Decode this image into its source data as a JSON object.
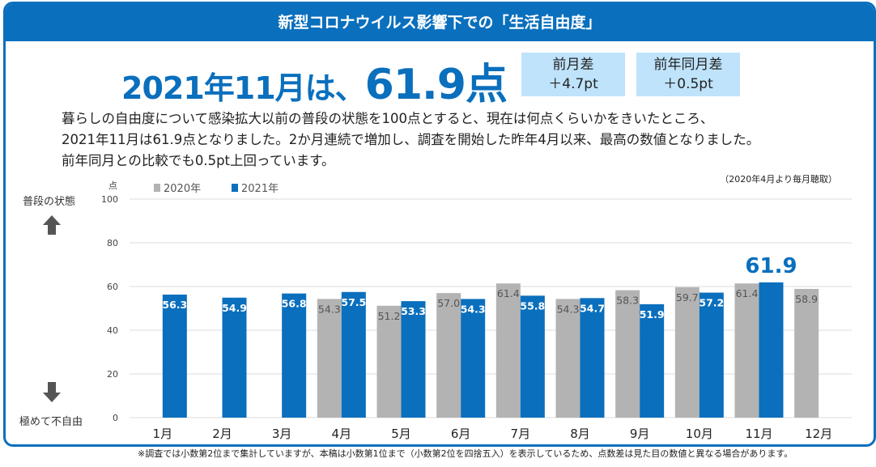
{
  "banner": "新型コロナウイルス影響下での「生活自由度」",
  "headline": {
    "prefix": "2021年11月は、",
    "value": "61.9点"
  },
  "diff_prev_month": {
    "label": "前月差",
    "value": "＋4.7pt"
  },
  "diff_prev_year": {
    "label": "前年同月差",
    "value": "＋0.5pt"
  },
  "description": [
    "暮らしの自由度について感染拡大以前の普段の状態を100点とすると、現在は何点くらいかをきいたところ、",
    "2021年11月は61.9点となりました。2か月連続で増加し、調査を開始した昨年4月以来、最高の数値となりました。",
    "前年同月との比較でも0.5pt上回っています。"
  ],
  "note_right": "（2020年4月より毎月聴取）",
  "side_top": "普段の状態",
  "side_bottom": "極めて不自由",
  "footnote": "※調査では小数第2位まで集計していますが、本稿は小数第1位まで（小数第2位を四捨五入）を表示しているため、点数差は見た目の数値と異なる場合があります。",
  "chart_data": {
    "type": "bar",
    "ylabel": "点",
    "ylim": [
      0,
      100
    ],
    "yticks": [
      0,
      20,
      40,
      60,
      80,
      100
    ],
    "categories": [
      "1月",
      "2月",
      "3月",
      "4月",
      "5月",
      "6月",
      "7月",
      "8月",
      "9月",
      "10月",
      "11月",
      "12月"
    ],
    "series": [
      {
        "name": "2020年",
        "color": "#b3b3b3",
        "values": [
          null,
          null,
          null,
          54.3,
          51.2,
          57.0,
          61.4,
          54.3,
          58.3,
          59.7,
          61.4,
          58.9
        ]
      },
      {
        "name": "2021年",
        "color": "#0a6fbd",
        "values": [
          56.3,
          54.9,
          56.8,
          57.5,
          53.3,
          54.3,
          55.8,
          54.7,
          51.9,
          57.2,
          61.9,
          null
        ]
      }
    ],
    "highlight": {
      "label": "61.9"
    },
    "legend": "top-left",
    "grid": true
  }
}
